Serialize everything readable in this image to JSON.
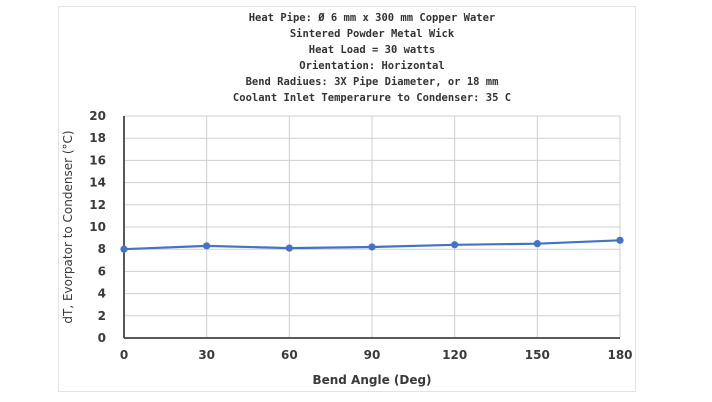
{
  "chart_data": {
    "type": "line",
    "title_lines": [
      "Heat Pipe: Ø 6 mm x 300 mm Copper Water",
      "Sintered Powder Metal Wick",
      "Heat Load = 30 watts",
      "Orientation: Horizontal",
      "Bend Radiues: 3X Pipe Diameter, or 18 mm",
      "Coolant Inlet Temperarure to Condenser: 35 C"
    ],
    "xlabel": "Bend Angle (Deg)",
    "ylabel": "dT, Evorpator to Condenser (°C)",
    "xlim": [
      0,
      180
    ],
    "ylim": [
      0,
      20
    ],
    "x_ticks": [
      "0",
      "30",
      "60",
      "90",
      "120",
      "150",
      "180"
    ],
    "y_ticks": [
      "0",
      "2",
      "4",
      "6",
      "8",
      "10",
      "12",
      "14",
      "16",
      "18",
      "20"
    ],
    "grid": true,
    "legend": "none",
    "series": [
      {
        "color": "#4472c4",
        "x": [
          0,
          30,
          60,
          90,
          120,
          150,
          180
        ],
        "y": [
          8.0,
          8.3,
          8.1,
          8.2,
          8.4,
          8.5,
          8.8
        ]
      }
    ]
  }
}
